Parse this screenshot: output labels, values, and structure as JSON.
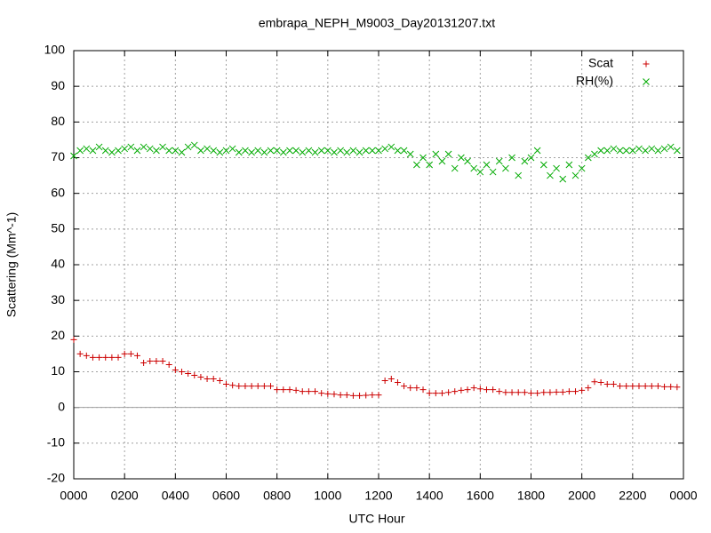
{
  "chart_data": {
    "type": "scatter",
    "title": "embrapa_NEPH_M9003_Day20131207.txt",
    "xlabel": "UTC Hour",
    "ylabel": "Scattering (Mm^-1)",
    "xlim": [
      0,
      24
    ],
    "ylim": [
      -20,
      100
    ],
    "xticks": [
      {
        "value": 0,
        "label": "0000"
      },
      {
        "value": 2,
        "label": "0200"
      },
      {
        "value": 4,
        "label": "0400"
      },
      {
        "value": 6,
        "label": "0600"
      },
      {
        "value": 8,
        "label": "0800"
      },
      {
        "value": 10,
        "label": "1000"
      },
      {
        "value": 12,
        "label": "1200"
      },
      {
        "value": 14,
        "label": "1400"
      },
      {
        "value": 16,
        "label": "1600"
      },
      {
        "value": 18,
        "label": "1800"
      },
      {
        "value": 20,
        "label": "2000"
      },
      {
        "value": 22,
        "label": "2200"
      },
      {
        "value": 24,
        "label": "0000"
      }
    ],
    "yticks": [
      -20,
      -10,
      0,
      10,
      20,
      30,
      40,
      50,
      60,
      70,
      80,
      90,
      100
    ],
    "grid": true,
    "legend": "top-right",
    "x": [
      0,
      0.25,
      0.5,
      0.75,
      1,
      1.25,
      1.5,
      1.75,
      2,
      2.25,
      2.5,
      2.75,
      3,
      3.25,
      3.5,
      3.75,
      4,
      4.25,
      4.5,
      4.75,
      5,
      5.25,
      5.5,
      5.75,
      6,
      6.25,
      6.5,
      6.75,
      7,
      7.25,
      7.5,
      7.75,
      8,
      8.25,
      8.5,
      8.75,
      9,
      9.25,
      9.5,
      9.75,
      10,
      10.25,
      10.5,
      10.75,
      11,
      11.25,
      11.5,
      11.75,
      12,
      12.25,
      12.5,
      12.75,
      13,
      13.25,
      13.5,
      13.75,
      14,
      14.25,
      14.5,
      14.75,
      15,
      15.25,
      15.5,
      15.75,
      16,
      16.25,
      16.5,
      16.75,
      17,
      17.25,
      17.5,
      17.75,
      18,
      18.25,
      18.5,
      18.75,
      19,
      19.25,
      19.5,
      19.75,
      20,
      20.25,
      20.5,
      20.75,
      21,
      21.25,
      21.5,
      21.75,
      22,
      22.25,
      22.5,
      22.75,
      23,
      23.25,
      23.5,
      23.75
    ],
    "series": [
      {
        "name": "Scat",
        "color": "#cc0000",
        "marker": "plus",
        "values": [
          19,
          15,
          14.5,
          14,
          14,
          14,
          14,
          14,
          15,
          15,
          14.5,
          12.5,
          13,
          13,
          13,
          12,
          10.5,
          10,
          9.5,
          9,
          8.5,
          8,
          8,
          7.5,
          6.5,
          6.2,
          6,
          6,
          6,
          6,
          6,
          6,
          5,
          5,
          5,
          4.8,
          4.5,
          4.5,
          4.5,
          4,
          3.8,
          3.7,
          3.5,
          3.5,
          3.3,
          3.3,
          3.4,
          3.5,
          3.5,
          7.5,
          8,
          7,
          6,
          5.5,
          5.5,
          5,
          4,
          4,
          4,
          4.2,
          4.5,
          4.8,
          5,
          5.5,
          5.2,
          5,
          5,
          4.5,
          4.2,
          4.2,
          4.2,
          4.2,
          4,
          4,
          4.2,
          4.2,
          4.3,
          4.3,
          4.5,
          4.5,
          4.8,
          5.5,
          7.2,
          7,
          6.5,
          6.5,
          6,
          6,
          6,
          6,
          6,
          6,
          6,
          5.8,
          5.8,
          5.7
        ]
      },
      {
        "name": "RH(%)",
        "color": "#00aa00",
        "marker": "cross",
        "values": [
          70.5,
          72,
          72.5,
          72,
          73,
          72,
          71.5,
          72,
          72.5,
          73,
          72,
          73,
          72.5,
          72,
          73,
          72,
          72,
          71.5,
          73,
          73.5,
          72,
          72.5,
          72,
          71.5,
          72,
          72.5,
          71.5,
          72,
          71.5,
          72,
          71.5,
          72,
          72,
          71.5,
          72,
          72,
          71.5,
          72,
          71.5,
          72,
          72,
          71.5,
          72,
          71.5,
          72,
          71.5,
          72,
          72,
          72,
          72.5,
          73,
          72,
          72,
          71,
          68,
          70,
          68,
          71,
          69,
          71,
          67,
          70,
          69,
          67,
          66,
          68,
          66,
          69,
          67,
          70,
          65,
          69,
          70,
          72,
          68,
          65,
          67,
          64,
          68,
          65,
          67,
          70,
          71,
          72,
          72,
          72.5,
          72,
          72,
          72,
          72.5,
          72,
          72.5,
          72,
          72.5,
          73,
          72
        ]
      }
    ]
  }
}
